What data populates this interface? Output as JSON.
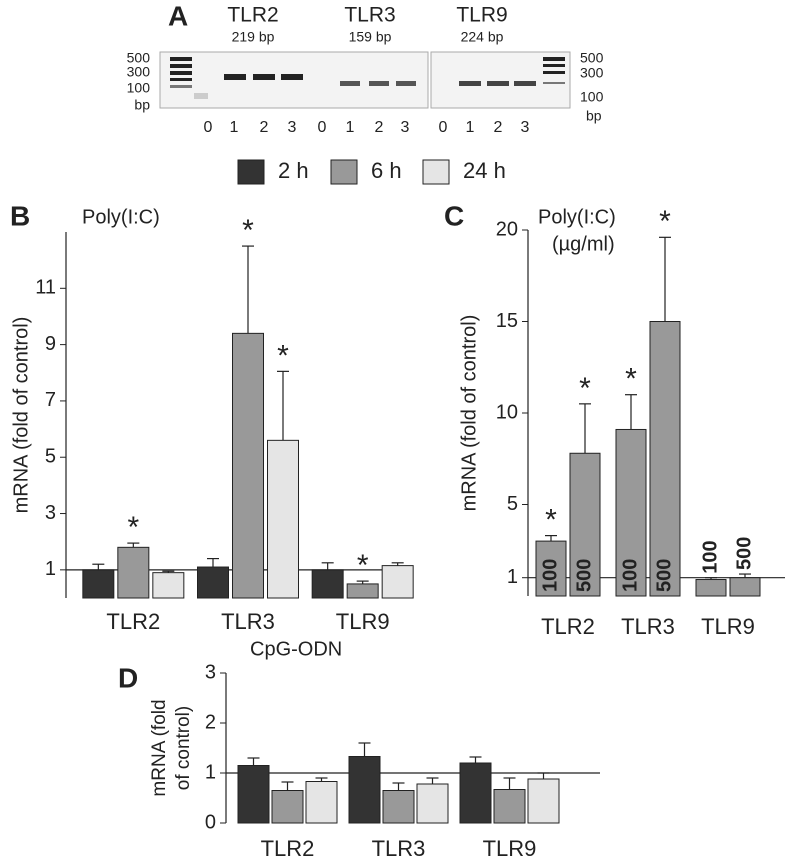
{
  "gel": {
    "panel": "A",
    "genes": [
      {
        "name": "TLR2",
        "size": "219 bp"
      },
      {
        "name": "TLR3",
        "size": "159 bp"
      },
      {
        "name": "TLR9",
        "size": "224 bp"
      }
    ],
    "ladder_left": [
      "500",
      "300",
      "100",
      "bp"
    ],
    "ladder_right": [
      "500",
      "300",
      "100",
      "bp"
    ],
    "lanes": [
      "0",
      "1",
      "2",
      "3"
    ]
  },
  "chart_data": [
    {
      "type": "bar",
      "panel": "B",
      "title": "Poly(I:C)",
      "ylabel": "mRNA (fold of control)",
      "categories": [
        "TLR2",
        "TLR3",
        "TLR9"
      ],
      "ylim": [
        0,
        13
      ],
      "yticks": [
        1,
        3,
        5,
        7,
        9,
        11
      ],
      "reference_line": 1,
      "legend": "top",
      "series": [
        {
          "name": "2 h",
          "color": "#333333",
          "values": [
            1.0,
            1.1,
            1.0
          ],
          "errors": [
            0.2,
            0.3,
            0.25
          ],
          "markers": [
            null,
            null,
            null
          ]
        },
        {
          "name": "6 h",
          "color": "#999999",
          "values": [
            1.8,
            9.4,
            0.5
          ],
          "errors": [
            0.15,
            3.1,
            0.1
          ],
          "markers": [
            "*",
            "*",
            "*"
          ]
        },
        {
          "name": "24 h",
          "color": "#e5e5e5",
          "values": [
            0.9,
            5.6,
            1.15
          ],
          "errors": [
            0.05,
            2.45,
            0.1
          ],
          "markers": [
            null,
            "*",
            null
          ]
        }
      ]
    },
    {
      "type": "bar",
      "panel": "C",
      "title": [
        "Poly(I:C)",
        "(µg/ml)"
      ],
      "ylabel": "mRNA (fold of control)",
      "categories": [
        "TLR2",
        "TLR3",
        "TLR9"
      ],
      "ylim": [
        0,
        20
      ],
      "yticks": [
        1,
        5,
        10,
        15,
        20
      ],
      "reference_line": 1,
      "bar_labels": true,
      "series": [
        {
          "name": "100",
          "color": "#999999",
          "values": [
            3.0,
            9.1,
            0.9
          ],
          "errors": [
            0.3,
            1.9,
            0.1
          ],
          "markers": [
            "*",
            "*",
            null
          ]
        },
        {
          "name": "500",
          "color": "#999999",
          "values": [
            7.8,
            15.0,
            1.0
          ],
          "errors": [
            2.7,
            4.6,
            0.2
          ],
          "markers": [
            "*",
            "*",
            null
          ]
        }
      ]
    },
    {
      "type": "bar",
      "panel": "D",
      "title": "CpG-ODN",
      "ylabel": [
        "mRNA (fold",
        "of control)"
      ],
      "categories": [
        "TLR2",
        "TLR3",
        "TLR9"
      ],
      "ylim": [
        0,
        3
      ],
      "yticks": [
        0,
        1,
        2,
        3
      ],
      "reference_line": 1,
      "series": [
        {
          "color": "#333333",
          "values": [
            1.15,
            1.33,
            1.2
          ],
          "errors": [
            0.15,
            0.27,
            0.12
          ]
        },
        {
          "color": "#999999",
          "values": [
            0.65,
            0.65,
            0.67
          ],
          "errors": [
            0.17,
            0.15,
            0.23
          ]
        },
        {
          "color": "#e5e5e5",
          "values": [
            0.83,
            0.78,
            0.88
          ],
          "errors": [
            0.07,
            0.12,
            0.12
          ]
        }
      ]
    }
  ]
}
